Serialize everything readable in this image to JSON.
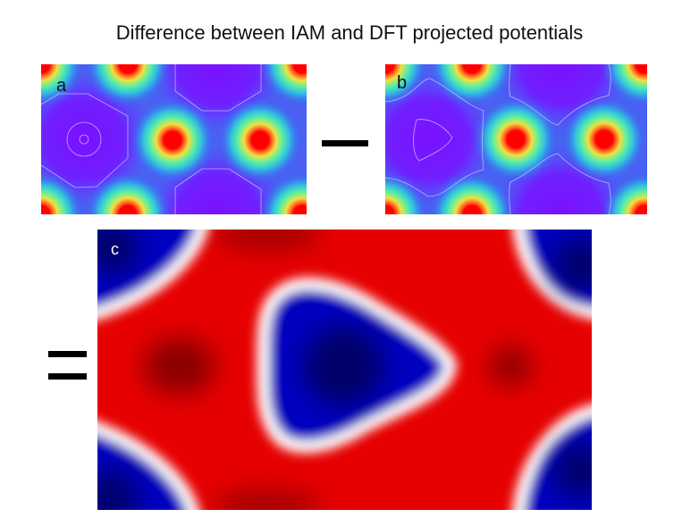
{
  "figure": {
    "title": "Difference between IAM and DFT projected potentials",
    "panels": [
      {
        "label": "a",
        "colormap": "rainbow"
      },
      {
        "label": "b",
        "colormap": "rainbow"
      },
      {
        "label": "c",
        "colormap": "blue-white-red"
      }
    ],
    "operators": {
      "minus": "minus",
      "equals": "equals"
    },
    "colors": {
      "high": "#ff0000",
      "low": "#7f00ff",
      "diff_positive": "#e00000",
      "diff_negative": "#0000c8"
    }
  }
}
